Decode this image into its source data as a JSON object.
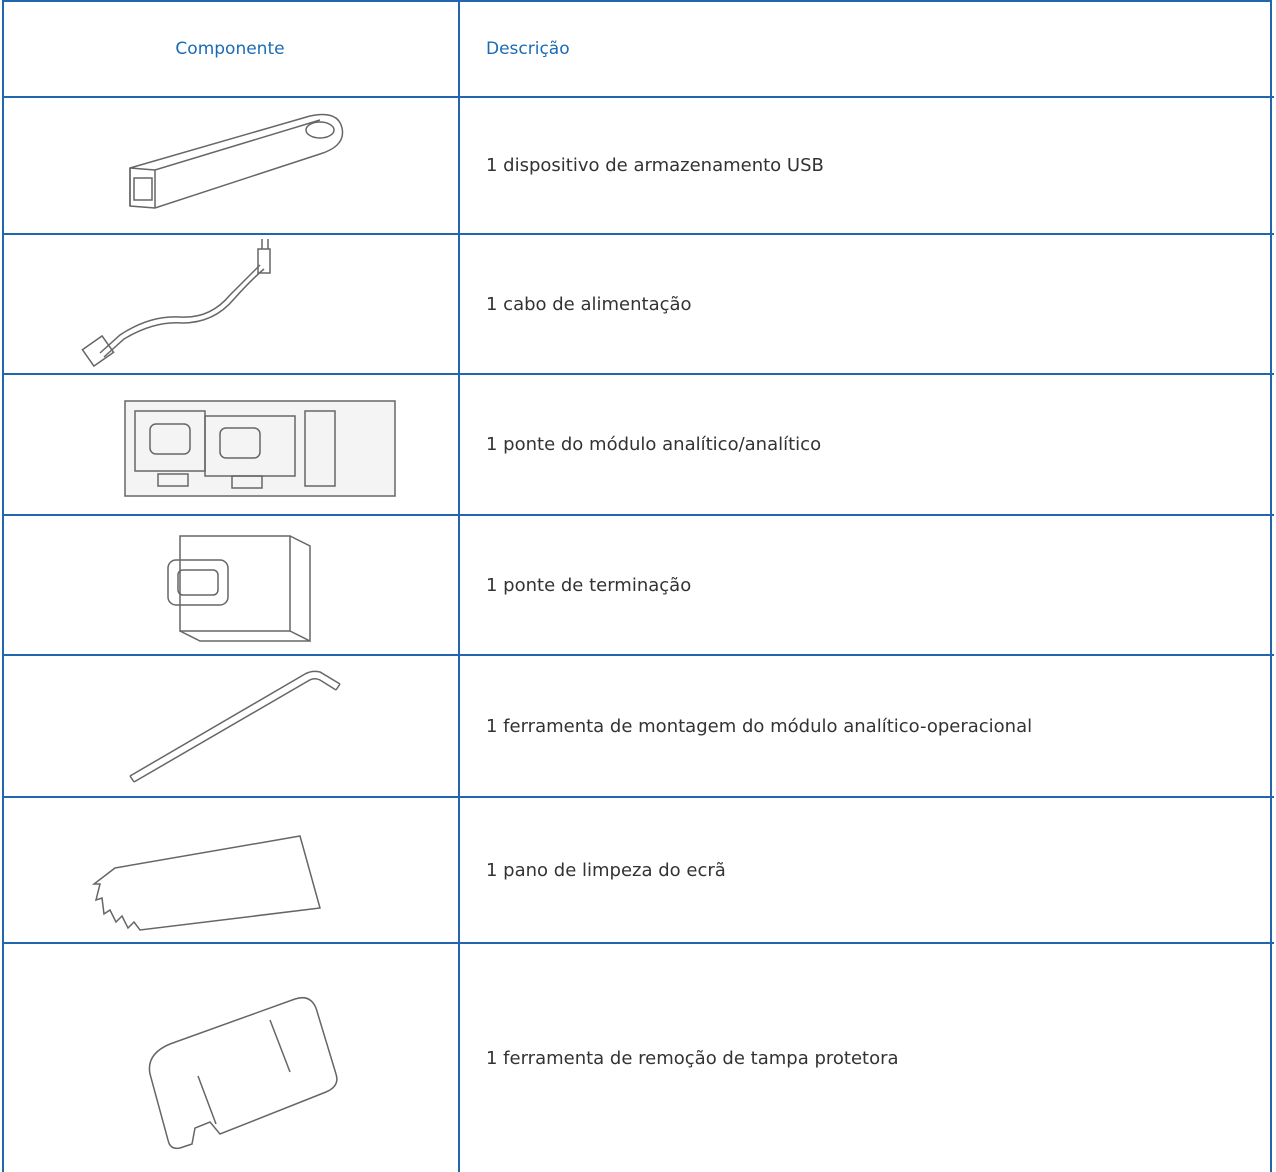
{
  "table": {
    "header": [
      "Componente",
      "Descrição"
    ],
    "rows": [
      {
        "description": "1 dispositivo de armazenamento USB"
      },
      {
        "description": "1 cabo de alimentação"
      },
      {
        "description": "1 ponte do módulo analítico/analítico"
      },
      {
        "description": "1 ponte de terminação"
      },
      {
        "description": "1 ferramenta de montagem do módulo analítico-operacional"
      },
      {
        "description": "1 pano de limpeza do ecrã"
      },
      {
        "description": "1 ferramenta de remoção de tampa protetora"
      }
    ]
  }
}
